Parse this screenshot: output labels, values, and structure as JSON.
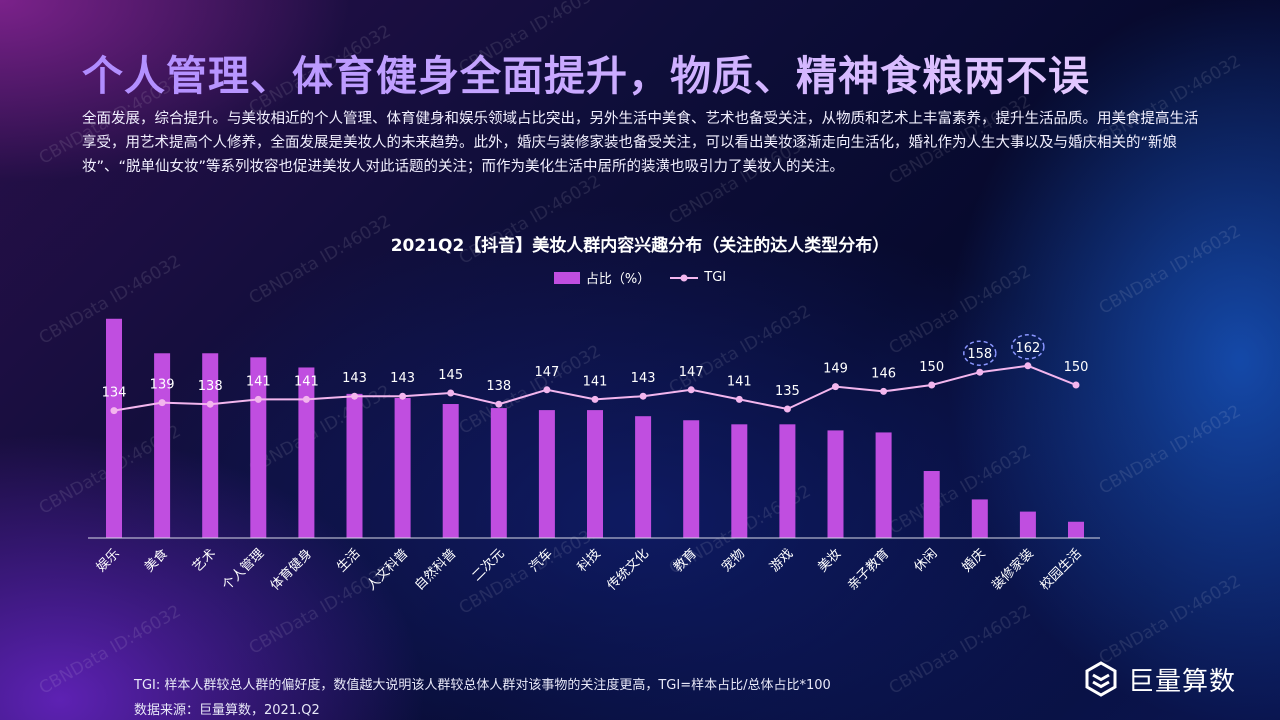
{
  "header": {
    "title": "个人管理、体育健身全面提升，物质、精神食粮两不误",
    "description": "全面发展，综合提升。与美妆相近的个人管理、体育健身和娱乐领域占比突出，另外生活中美食、艺术也备受关注，从物质和艺术上丰富素养，提升生活品质。用美食提高生活享受，用艺术提高个人修养，全面发展是美妆人的未来趋势。此外，婚庆与装修家装也备受关注，可以看出美妆逐渐走向生活化，婚礼作为人生大事以及与婚庆相关的“新娘妆”、“脱单仙女妆”等系列妆容也促进美妆人对此话题的关注；而作为美化生活中居所的装潢也吸引力了美妆人的关注。"
  },
  "watermark": "CBNData ID:46032",
  "chart_data": {
    "type": "bar",
    "title": "2021Q2【抖音】美妆人群内容兴趣分布（关注的达人类型分布）",
    "legend": [
      "占比（%）",
      "TGI"
    ],
    "legend_position": "top-center",
    "categories": [
      "娱乐",
      "美食",
      "艺术",
      "个人管理",
      "体育健身",
      "生活",
      "人文科普",
      "自然科普",
      "二次元",
      "汽车",
      "科技",
      "传统文化",
      "教育",
      "宠物",
      "游戏",
      "美妆",
      "亲子教育",
      "休闲",
      "婚庆",
      "装修家装",
      "校园生活"
    ],
    "series": [
      {
        "name": "占比（%）",
        "type": "bar",
        "values": [
          10.8,
          9.1,
          9.1,
          8.9,
          8.4,
          7.1,
          6.9,
          6.6,
          6.4,
          6.3,
          6.3,
          6.0,
          5.8,
          5.6,
          5.6,
          5.3,
          5.2,
          3.3,
          1.9,
          1.3,
          0.8
        ]
      },
      {
        "name": "TGI",
        "type": "line",
        "values": [
          134,
          139,
          138,
          141,
          141,
          143,
          143,
          145,
          138,
          147,
          141,
          143,
          147,
          141,
          135,
          149,
          146,
          150,
          158,
          162,
          150
        ]
      }
    ],
    "highlighted": [
      "婚庆",
      "装修家装"
    ],
    "grid": false,
    "colors": {
      "bar": "#c04ee0",
      "line": "#f3b6ee"
    }
  },
  "footer": {
    "note": "TGI: 样本人群较总人群的偏好度，数值越大说明该人群较总体人群对该事物的关注度更高，TGI=样本占比/总体占比*100",
    "source": "数据来源：巨量算数，2021.Q2"
  },
  "logo": {
    "text": "巨量算数",
    "icon": "layered-hexagon-logo-icon"
  }
}
